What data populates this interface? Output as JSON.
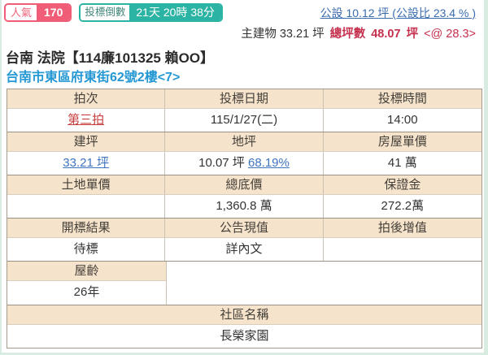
{
  "badges": {
    "popularity_label": "人氣",
    "popularity_value": "170",
    "countdown_label": "投標倒數",
    "countdown_value": "21天 20時 38分"
  },
  "area_info": {
    "common_area_link": "公設 10.12 坪 (公設比 23.4 % )",
    "main_building": "主建物 33.21 坪",
    "total_label": "總坪數",
    "total_value": "48.07",
    "total_unit": "坪",
    "total_extra": "<@ 28.3>"
  },
  "title": "台南 法院【114廉101325 賴OO】",
  "address": "台南市東區府東街62號2樓<7>",
  "table": {
    "g1": {
      "h1": "拍次",
      "h2": "投標日期",
      "h3": "投標時間",
      "v1": "第三拍",
      "v2": "115/1/27(二)",
      "v3": "14:00"
    },
    "g2": {
      "h1": "建坪",
      "h2": "地坪",
      "h3": "房屋單價",
      "v1": "33.21 坪",
      "v2_pre": "10.07 坪 ",
      "v2_link": "68.19%",
      "v3": "41 萬"
    },
    "g3": {
      "h1": "土地單價",
      "h2": "總底價",
      "h3": "保證金",
      "v1": "",
      "v2": "1,360.8 萬",
      "v3": "272.2萬"
    },
    "g4": {
      "h1": "開標結果",
      "h2": "公告現值",
      "h3": "拍後增值",
      "v1": "待標",
      "v2": "詳內文",
      "v3": ""
    },
    "g5": {
      "h1": "屋齡",
      "v1": "26年"
    },
    "g6": {
      "h1": "社區名稱",
      "v1": "長榮家園"
    }
  },
  "colors": {
    "badge_pink": "#ef5e76",
    "badge_teal": "#2bb3a3",
    "crimson_total": "#c5304e",
    "red_link": "#c94141",
    "blue_link": "#3e74c0",
    "address_blue": "#2598d3",
    "header_beige": "#f6e3cb",
    "table_border": "#a29a8b",
    "page_edge": "#d9ece1"
  }
}
